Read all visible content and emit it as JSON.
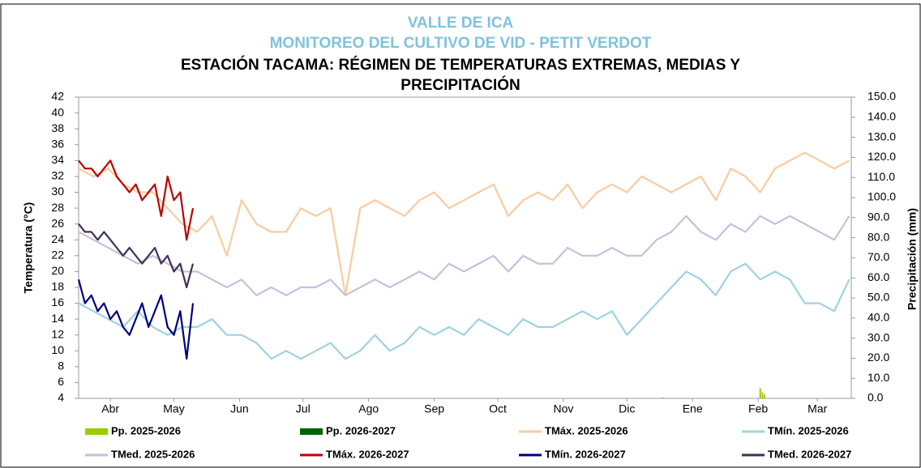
{
  "chart_data": {
    "type": "line",
    "title_1": "VALLE DE ICA",
    "title_2": "MONITOREO DEL CULTIVO DE VID - PETIT VERDOT",
    "title": "ESTACIÓN TACAMA: RÉGIMEN DE TEMPERATURAS EXTREMAS, MEDIAS Y PRECIPITACIÓN",
    "ylabel": "Temperatura (°C)",
    "y2label": "Precipitación (mm)",
    "xlim": [
      0,
      365
    ],
    "xticks": [
      {
        "value": 15,
        "label": "Abr"
      },
      {
        "value": 45,
        "label": "May"
      },
      {
        "value": 76,
        "label": "Jun"
      },
      {
        "value": 106,
        "label": "Jul"
      },
      {
        "value": 137,
        "label": "Ago"
      },
      {
        "value": 168,
        "label": "Sep"
      },
      {
        "value": 198,
        "label": "Oct"
      },
      {
        "value": 229,
        "label": "Nov"
      },
      {
        "value": 259,
        "label": "Dic"
      },
      {
        "value": 290,
        "label": "Ene"
      },
      {
        "value": 321,
        "label": "Feb"
      },
      {
        "value": 349,
        "label": "Mar"
      }
    ],
    "ylim": [
      4,
      42
    ],
    "yticks": [
      4,
      6,
      8,
      10,
      12,
      14,
      16,
      18,
      20,
      22,
      24,
      26,
      28,
      30,
      32,
      34,
      36,
      38,
      40,
      42
    ],
    "y2lim": [
      0,
      150
    ],
    "y2ticks": [
      {
        "value": 0,
        "label": "0.0"
      },
      {
        "value": 10,
        "label": "10.0"
      },
      {
        "value": 20,
        "label": "20.0"
      },
      {
        "value": 30,
        "label": "30.0"
      },
      {
        "value": 40,
        "label": "40.0"
      },
      {
        "value": 50,
        "label": "50.0"
      },
      {
        "value": 60,
        "label": "60.0"
      },
      {
        "value": 70,
        "label": "70.0"
      },
      {
        "value": 80,
        "label": "80.0"
      },
      {
        "value": 90,
        "label": "90.0"
      },
      {
        "value": 100,
        "label": "100.0"
      },
      {
        "value": 110,
        "label": "110.0"
      },
      {
        "value": 120,
        "label": "120.0"
      },
      {
        "value": 130,
        "label": "130.0"
      },
      {
        "value": 140,
        "label": "140.0"
      },
      {
        "value": 150,
        "label": "150.0"
      }
    ],
    "series": [
      {
        "name": "Pp. 2025-2026",
        "type": "bar",
        "axis": "y2",
        "color": "#99cc00",
        "x": [
          276,
          322,
          323,
          324
        ],
        "values": [
          0.5,
          5,
          3,
          2
        ]
      },
      {
        "name": "Pp. 2026-2027",
        "type": "bar",
        "axis": "y2",
        "color": "#006400",
        "x": [],
        "values": []
      },
      {
        "name": "TMáx. 2025-2026",
        "type": "line",
        "color": "#f9cba0",
        "x": [
          0,
          7,
          14,
          21,
          28,
          35,
          42,
          49,
          56,
          63,
          70,
          77,
          84,
          91,
          98,
          105,
          112,
          119,
          126,
          133,
          140,
          147,
          154,
          161,
          168,
          175,
          182,
          189,
          196,
          203,
          210,
          217,
          224,
          231,
          238,
          245,
          252,
          259,
          266,
          273,
          280,
          287,
          294,
          301,
          308,
          315,
          322,
          329,
          336,
          343,
          350,
          357,
          364
        ],
        "values": [
          33,
          32,
          33,
          31,
          30,
          30,
          28,
          26,
          25,
          27,
          22,
          29,
          26,
          25,
          25,
          28,
          27,
          28,
          17,
          28,
          29,
          28,
          27,
          29,
          30,
          28,
          29,
          30,
          31,
          27,
          29,
          30,
          29,
          31,
          28,
          30,
          31,
          30,
          32,
          31,
          30,
          31,
          32,
          29,
          33,
          32,
          30,
          33,
          34,
          35,
          34,
          33,
          34
        ]
      },
      {
        "name": "TMín. 2025-2026",
        "type": "line",
        "color": "#9fd3de",
        "x": [
          0,
          7,
          14,
          21,
          28,
          35,
          42,
          49,
          56,
          63,
          70,
          77,
          84,
          91,
          98,
          105,
          112,
          119,
          126,
          133,
          140,
          147,
          154,
          161,
          168,
          175,
          182,
          189,
          196,
          203,
          210,
          217,
          224,
          231,
          238,
          245,
          252,
          259,
          266,
          273,
          280,
          287,
          294,
          301,
          308,
          315,
          322,
          329,
          336,
          343,
          350,
          357,
          364
        ],
        "values": [
          16,
          15,
          14,
          13,
          15,
          13,
          12,
          13,
          13,
          14,
          12,
          12,
          11,
          9,
          10,
          9,
          10,
          11,
          9,
          10,
          12,
          10,
          11,
          13,
          12,
          13,
          12,
          14,
          13,
          12,
          14,
          13,
          13,
          14,
          15,
          14,
          15,
          12,
          14,
          16,
          18,
          20,
          19,
          17,
          20,
          21,
          19,
          20,
          19,
          16,
          16,
          15,
          19
        ]
      },
      {
        "name": "TMed. 2025-2026",
        "type": "line",
        "color": "#c9bfdc",
        "x": [
          0,
          7,
          14,
          21,
          28,
          35,
          42,
          49,
          56,
          63,
          70,
          77,
          84,
          91,
          98,
          105,
          112,
          119,
          126,
          133,
          140,
          147,
          154,
          161,
          168,
          175,
          182,
          189,
          196,
          203,
          210,
          217,
          224,
          231,
          238,
          245,
          252,
          259,
          266,
          273,
          280,
          287,
          294,
          301,
          308,
          315,
          322,
          329,
          336,
          343,
          350,
          357,
          364
        ],
        "values": [
          25,
          24,
          23,
          22,
          21,
          22,
          21,
          20,
          20,
          19,
          18,
          19,
          17,
          18,
          17,
          18,
          18,
          19,
          17,
          18,
          19,
          18,
          19,
          20,
          19,
          21,
          20,
          21,
          22,
          20,
          22,
          21,
          21,
          23,
          22,
          22,
          23,
          22,
          22,
          24,
          25,
          27,
          25,
          24,
          26,
          25,
          27,
          26,
          27,
          26,
          25,
          24,
          27
        ]
      },
      {
        "name": "TMáx. 2026-2027",
        "type": "line",
        "color": "#c00000",
        "x": [
          0,
          3,
          6,
          9,
          12,
          15,
          18,
          21,
          24,
          27,
          30,
          33,
          36,
          39,
          42,
          45,
          48,
          51,
          54
        ],
        "values": [
          34,
          33,
          33,
          32,
          33,
          34,
          32,
          31,
          30,
          31,
          29,
          30,
          31,
          27,
          32,
          29,
          30,
          24,
          28
        ]
      },
      {
        "name": "TMín. 2026-2027",
        "type": "line",
        "color": "#000080",
        "x": [
          0,
          3,
          6,
          9,
          12,
          15,
          18,
          21,
          24,
          27,
          30,
          33,
          36,
          39,
          42,
          45,
          48,
          51,
          54
        ],
        "values": [
          19,
          16,
          17,
          15,
          16,
          14,
          15,
          13,
          12,
          14,
          16,
          13,
          15,
          17,
          13,
          12,
          15,
          9,
          16
        ]
      },
      {
        "name": "TMed. 2026-2027",
        "type": "line",
        "color": "#403152",
        "x": [
          0,
          3,
          6,
          9,
          12,
          15,
          18,
          21,
          24,
          27,
          30,
          33,
          36,
          39,
          42,
          45,
          48,
          51,
          54
        ],
        "values": [
          26,
          25,
          25,
          24,
          25,
          24,
          23,
          22,
          23,
          22,
          21,
          22,
          23,
          21,
          22,
          20,
          21,
          18,
          21
        ]
      }
    ]
  }
}
